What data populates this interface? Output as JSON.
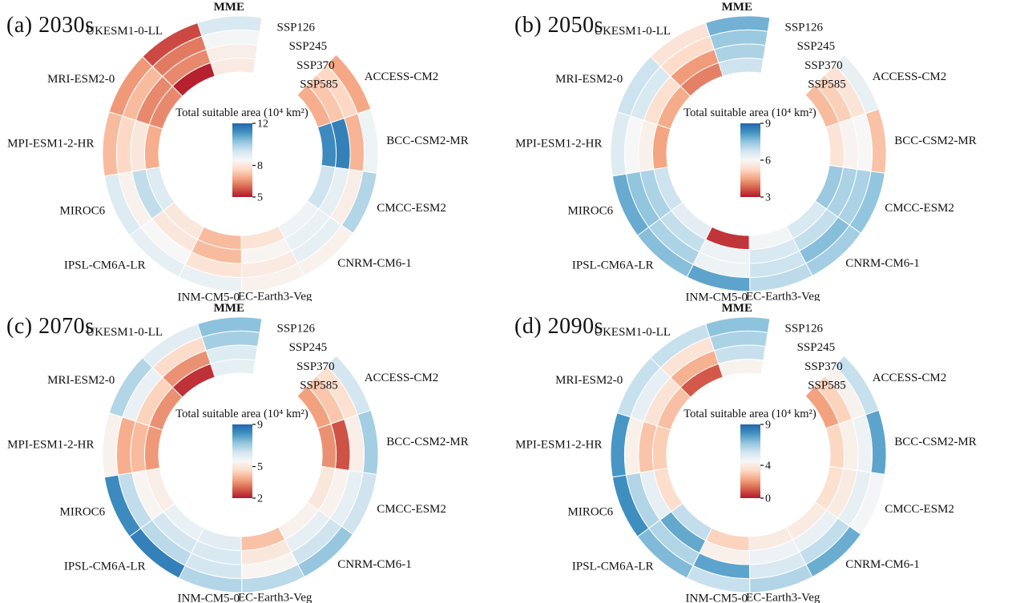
{
  "colors": {
    "background": "#ffffff",
    "text": "#111111",
    "cell_divider": "#ffffff",
    "colormap": [
      "#b2182b",
      "#d6604d",
      "#f4a582",
      "#fddbc7",
      "#f7f7f7",
      "#d1e5f0",
      "#92c5de",
      "#4393c3",
      "#2166ac"
    ]
  },
  "chart_data": [
    {
      "type": "heatmap",
      "variant": "circular-heatmap",
      "panel_label": "(a) 2030s",
      "grid": false,
      "legend_position": "center",
      "colorbar": {
        "title": "Total suitable area (10⁴ km²)",
        "vmin": 5,
        "vmax": 12,
        "ticks": [
          12,
          8,
          5
        ]
      },
      "rings": [
        "SSP126",
        "SSP245",
        "SSP370",
        "SSP585"
      ],
      "series": [
        {
          "name": "ACCESS-CM2",
          "values": [
            6.8,
            7.6,
            7.3,
            6.9
          ]
        },
        {
          "name": "BCC-CSM2-MR",
          "values": [
            8.7,
            7.0,
            11.5,
            11.3
          ]
        },
        {
          "name": "CMCC-ESM2",
          "values": [
            9.8,
            8.2,
            8.9,
            9.4
          ]
        },
        {
          "name": "CNRM-CM6-1",
          "values": [
            8.3,
            8.9,
            8.8,
            8.7
          ]
        },
        {
          "name": "EC-Earth3-Veg",
          "values": [
            8.3,
            8.1,
            8.4,
            7.9
          ]
        },
        {
          "name": "INM-CM5-0",
          "values": [
            8.8,
            7.9,
            7.1,
            7.1
          ]
        },
        {
          "name": "IPSL-CM6A-LR",
          "values": [
            8.9,
            8.5,
            8.0,
            8.0
          ]
        },
        {
          "name": "MIROC6",
          "values": [
            9.1,
            8.3,
            9.6,
            9.1
          ]
        },
        {
          "name": "MPI-ESM1-2-HR",
          "values": [
            7.1,
            7.6,
            8.0,
            6.9
          ]
        },
        {
          "name": "MRI-ESM2-0",
          "values": [
            6.6,
            7.1,
            6.4,
            6.4
          ]
        },
        {
          "name": "UKESM1-0-LL",
          "values": [
            5.6,
            6.2,
            6.4,
            5.1
          ]
        },
        {
          "name": "MME",
          "values": [
            9.2,
            8.6,
            8.2,
            8.1
          ]
        }
      ]
    },
    {
      "type": "heatmap",
      "variant": "circular-heatmap",
      "panel_label": "(b) 2050s",
      "grid": false,
      "legend_position": "center",
      "colorbar": {
        "title": "Total suitable area (10⁴ km²)",
        "vmin": 3,
        "vmax": 9,
        "ticks": [
          9,
          6,
          3
        ]
      },
      "rings": [
        "SSP126",
        "SSP245",
        "SSP370",
        "SSP585"
      ],
      "series": [
        {
          "name": "ACCESS-CM2",
          "values": [
            6.3,
            5.5,
            5.1,
            4.8
          ]
        },
        {
          "name": "BCC-CSM2-MR",
          "values": [
            4.9,
            6.0,
            5.9,
            5.5
          ]
        },
        {
          "name": "CMCC-ESM2",
          "values": [
            7.5,
            7.2,
            7.2,
            7.4
          ]
        },
        {
          "name": "CNRM-CM6-1",
          "values": [
            7.3,
            7.6,
            6.9,
            6.6
          ]
        },
        {
          "name": "EC-Earth3-Veg",
          "values": [
            7.0,
            6.8,
            6.6,
            6.1
          ]
        },
        {
          "name": "INM-CM5-0",
          "values": [
            8.0,
            6.2,
            6.2,
            3.3
          ]
        },
        {
          "name": "IPSL-CM6A-LR",
          "values": [
            7.6,
            7.2,
            6.9,
            6.4
          ]
        },
        {
          "name": "MIROC6",
          "values": [
            7.9,
            7.5,
            7.2,
            6.8
          ]
        },
        {
          "name": "MPI-ESM1-2-HR",
          "values": [
            6.5,
            6.0,
            5.8,
            4.5
          ]
        },
        {
          "name": "MRI-ESM2-0",
          "values": [
            6.8,
            6.6,
            5.4,
            4.6
          ]
        },
        {
          "name": "UKESM1-0-LL",
          "values": [
            5.5,
            5.3,
            4.4,
            4.1
          ]
        },
        {
          "name": "MME",
          "values": [
            7.8,
            7.4,
            7.2,
            6.8
          ]
        }
      ]
    },
    {
      "type": "heatmap",
      "variant": "circular-heatmap",
      "panel_label": "(c) 2070s",
      "grid": false,
      "legend_position": "center",
      "colorbar": {
        "title": "Total suitable area (10⁴ km²)",
        "vmin": 2,
        "vmax": 9,
        "ticks": [
          9,
          5,
          2
        ]
      },
      "rings": [
        "SSP126",
        "SSP245",
        "SSP370",
        "SSP585"
      ],
      "series": [
        {
          "name": "ACCESS-CM2",
          "values": [
            6.3,
            4.8,
            4.3,
            3.7
          ]
        },
        {
          "name": "BCC-CSM2-MR",
          "values": [
            7.0,
            5.2,
            2.7,
            3.5
          ]
        },
        {
          "name": "CMCC-ESM2",
          "values": [
            6.4,
            5.9,
            5.3,
            5.0
          ]
        },
        {
          "name": "CNRM-CM6-1",
          "values": [
            7.2,
            6.4,
            5.9,
            5.3
          ]
        },
        {
          "name": "EC-Earth3-Veg",
          "values": [
            6.7,
            5.4,
            5.0,
            4.2
          ]
        },
        {
          "name": "INM-CM5-0",
          "values": [
            6.8,
            6.3,
            6.2,
            6.0
          ]
        },
        {
          "name": "IPSL-CM6A-LR",
          "values": [
            8.5,
            6.7,
            6.3,
            5.8
          ]
        },
        {
          "name": "MIROC6",
          "values": [
            8.3,
            6.6,
            5.4,
            5.2
          ]
        },
        {
          "name": "MPI-ESM1-2-HR",
          "values": [
            5.3,
            3.9,
            4.1,
            3.6
          ]
        },
        {
          "name": "MRI-ESM2-0",
          "values": [
            6.8,
            5.8,
            4.5,
            3.5
          ]
        },
        {
          "name": "UKESM1-0-LL",
          "values": [
            6.0,
            4.7,
            3.5,
            2.3
          ]
        },
        {
          "name": "MME",
          "values": [
            7.3,
            7.0,
            6.1,
            5.9
          ]
        }
      ]
    },
    {
      "type": "heatmap",
      "variant": "circular-heatmap",
      "panel_label": "(d) 2090s",
      "grid": false,
      "legend_position": "center",
      "colorbar": {
        "title": "Total suitable area (10⁴ km²)",
        "vmin": 0,
        "vmax": 9,
        "ticks": [
          9,
          4,
          0
        ]
      },
      "rings": [
        "SSP126",
        "SSP245",
        "SSP370",
        "SSP585"
      ],
      "series": [
        {
          "name": "ACCESS-CM2",
          "values": [
            5.8,
            4.3,
            3.2,
            2.2
          ]
        },
        {
          "name": "BCC-CSM2-MR",
          "values": [
            7.5,
            4.8,
            4.2,
            3.3
          ]
        },
        {
          "name": "CMCC-ESM2",
          "values": [
            4.6,
            5.0,
            4.0,
            3.6
          ]
        },
        {
          "name": "CNRM-CM6-1",
          "values": [
            7.3,
            5.9,
            4.9,
            4.0
          ]
        },
        {
          "name": "EC-Earth3-Veg",
          "values": [
            6.2,
            5.4,
            4.8,
            4.0
          ]
        },
        {
          "name": "INM-CM5-0",
          "values": [
            5.8,
            7.5,
            4.2,
            3.2
          ]
        },
        {
          "name": "IPSL-CM6A-LR",
          "values": [
            7.0,
            6.2,
            7.4,
            5.9
          ]
        },
        {
          "name": "MIROC6",
          "values": [
            8.0,
            6.2,
            5.0,
            3.5
          ]
        },
        {
          "name": "MPI-ESM1-2-HR",
          "values": [
            7.8,
            4.2,
            2.9,
            3.1
          ]
        },
        {
          "name": "MRI-ESM2-0",
          "values": [
            5.8,
            5.0,
            3.7,
            2.8
          ]
        },
        {
          "name": "UKESM1-0-LL",
          "values": [
            5.8,
            3.7,
            2.5,
            1.0
          ]
        },
        {
          "name": "MME",
          "values": [
            6.8,
            6.3,
            5.8,
            4.3
          ]
        }
      ]
    }
  ]
}
